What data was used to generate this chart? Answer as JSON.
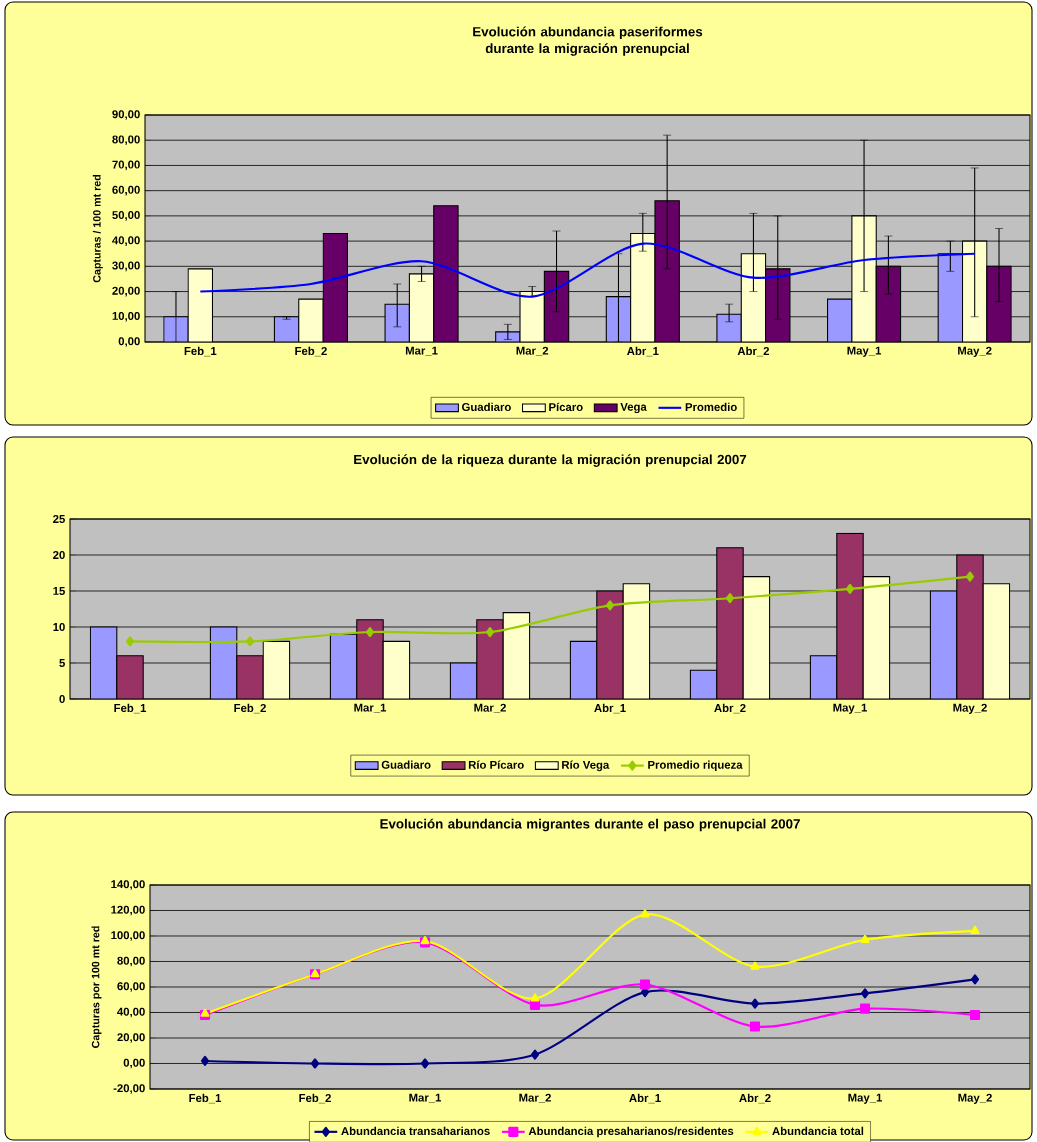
{
  "chart_data": [
    {
      "type": "bar",
      "title": "Evolución abundancia paseriformes durante la migración prenupcial",
      "ylabel": "Capturas / 100 mt red",
      "categories": [
        "Feb_1",
        "Feb_2",
        "Mar_1",
        "Mar_2",
        "Abr_1",
        "Abr_2",
        "May_1",
        "May_2"
      ],
      "series": [
        {
          "name": "Guadiaro",
          "color": "#9999ff",
          "values": [
            10,
            10,
            15,
            4,
            18,
            11,
            17,
            35
          ],
          "errors": [
            [
              0,
              20
            ],
            [
              9,
              10
            ],
            [
              6,
              23
            ],
            [
              1,
              7
            ],
            [
              0,
              35
            ],
            [
              8,
              15
            ],
            null,
            [
              28,
              40
            ]
          ]
        },
        {
          "name": "Pícaro",
          "color": "#ffffcc",
          "values": [
            29,
            17,
            27,
            20,
            43,
            35,
            50,
            40
          ],
          "errors": [
            null,
            null,
            [
              24,
              30
            ],
            [
              18,
              22
            ],
            [
              36,
              51
            ],
            [
              20,
              51
            ],
            [
              20,
              80
            ],
            [
              10,
              69
            ]
          ]
        },
        {
          "name": "Vega",
          "color": "#660066",
          "values": [
            null,
            43,
            54,
            28,
            56,
            29,
            30,
            30
          ],
          "errors": [
            null,
            null,
            null,
            [
              12,
              44
            ],
            [
              29,
              82
            ],
            [
              9,
              50
            ],
            [
              19,
              42
            ],
            [
              16,
              45
            ]
          ]
        },
        {
          "name": "Promedio",
          "type": "line",
          "color": "#0000ff",
          "values": [
            20,
            23,
            32,
            18,
            39,
            25.5,
            32.5,
            35
          ]
        }
      ],
      "ylim": [
        0,
        90
      ],
      "yticks": [
        {
          "value": 0,
          "label": "0,00"
        },
        {
          "value": 10,
          "label": "10,00"
        },
        {
          "value": 20,
          "label": "20,00"
        },
        {
          "value": 30,
          "label": "30,00"
        },
        {
          "value": 40,
          "label": "40,00"
        },
        {
          "value": 50,
          "label": "50,00"
        },
        {
          "value": 60,
          "label": "60,00"
        },
        {
          "value": 70,
          "label": "70,00"
        },
        {
          "value": 80,
          "label": "80,00"
        },
        {
          "value": 90,
          "label": "90,00"
        }
      ],
      "grid": "y",
      "legend": "bottom"
    },
    {
      "type": "bar",
      "title": "Evolución de la riqueza durante la migración prenupcial 2007",
      "categories": [
        "Feb_1",
        "Feb_2",
        "Mar_1",
        "Mar_2",
        "Abr_1",
        "Abr_2",
        "May_1",
        "May_2"
      ],
      "series": [
        {
          "name": "Guadiaro",
          "color": "#9999ff",
          "values": [
            10,
            10,
            9,
            5,
            8,
            4,
            6,
            15
          ]
        },
        {
          "name": "Río Pícaro",
          "color": "#993366",
          "values": [
            6,
            6,
            11,
            11,
            15,
            21,
            23,
            20
          ]
        },
        {
          "name": "Río Vega",
          "color": "#ffffcc",
          "values": [
            null,
            8,
            8,
            12,
            16,
            17,
            17,
            16
          ]
        },
        {
          "name": "Promedio riqueza",
          "type": "line",
          "color": "#99cc00",
          "marker": "diamond",
          "values": [
            8,
            8,
            9.3,
            9.3,
            13,
            14,
            15.3,
            17
          ]
        }
      ],
      "ylim": [
        0,
        25
      ],
      "yticks": [
        0,
        5,
        10,
        15,
        20,
        25
      ],
      "grid": "y",
      "legend": "bottom"
    },
    {
      "type": "line",
      "title": "Evolución abundancia migrantes durante el paso prenupcial 2007",
      "ylabel": "Capturas por 100 mt red",
      "categories": [
        "Feb_1",
        "Feb_2",
        "Mar_1",
        "Mar_2",
        "Abr_1",
        "Abr_2",
        "May_1",
        "May_2"
      ],
      "series": [
        {
          "name": "Abundancia transaharianos",
          "color": "#000080",
          "marker": "diamond",
          "values": [
            2,
            0,
            0,
            7,
            56,
            47,
            55,
            66
          ]
        },
        {
          "name": "Abundancia presaharianos/residentes",
          "color": "#ff00ff",
          "marker": "square",
          "values": [
            38,
            70,
            95,
            46,
            62,
            29,
            43,
            38
          ]
        },
        {
          "name": "Abundancia total",
          "color": "#ffff00",
          "marker": "triangle",
          "values": [
            39,
            70,
            96,
            51,
            117,
            76,
            97,
            104
          ]
        }
      ],
      "ylim": [
        -20,
        140
      ],
      "yticks": [
        {
          "value": -20,
          "label": "-20,00"
        },
        {
          "value": 0,
          "label": "0,00"
        },
        {
          "value": 20,
          "label": "20,00"
        },
        {
          "value": 40,
          "label": "40,00"
        },
        {
          "value": 60,
          "label": "60,00"
        },
        {
          "value": 80,
          "label": "80,00"
        },
        {
          "value": 100,
          "label": "100,00"
        },
        {
          "value": 120,
          "label": "120,00"
        },
        {
          "value": 140,
          "label": "140,00"
        }
      ],
      "grid": "y",
      "legend": "bottom"
    }
  ]
}
